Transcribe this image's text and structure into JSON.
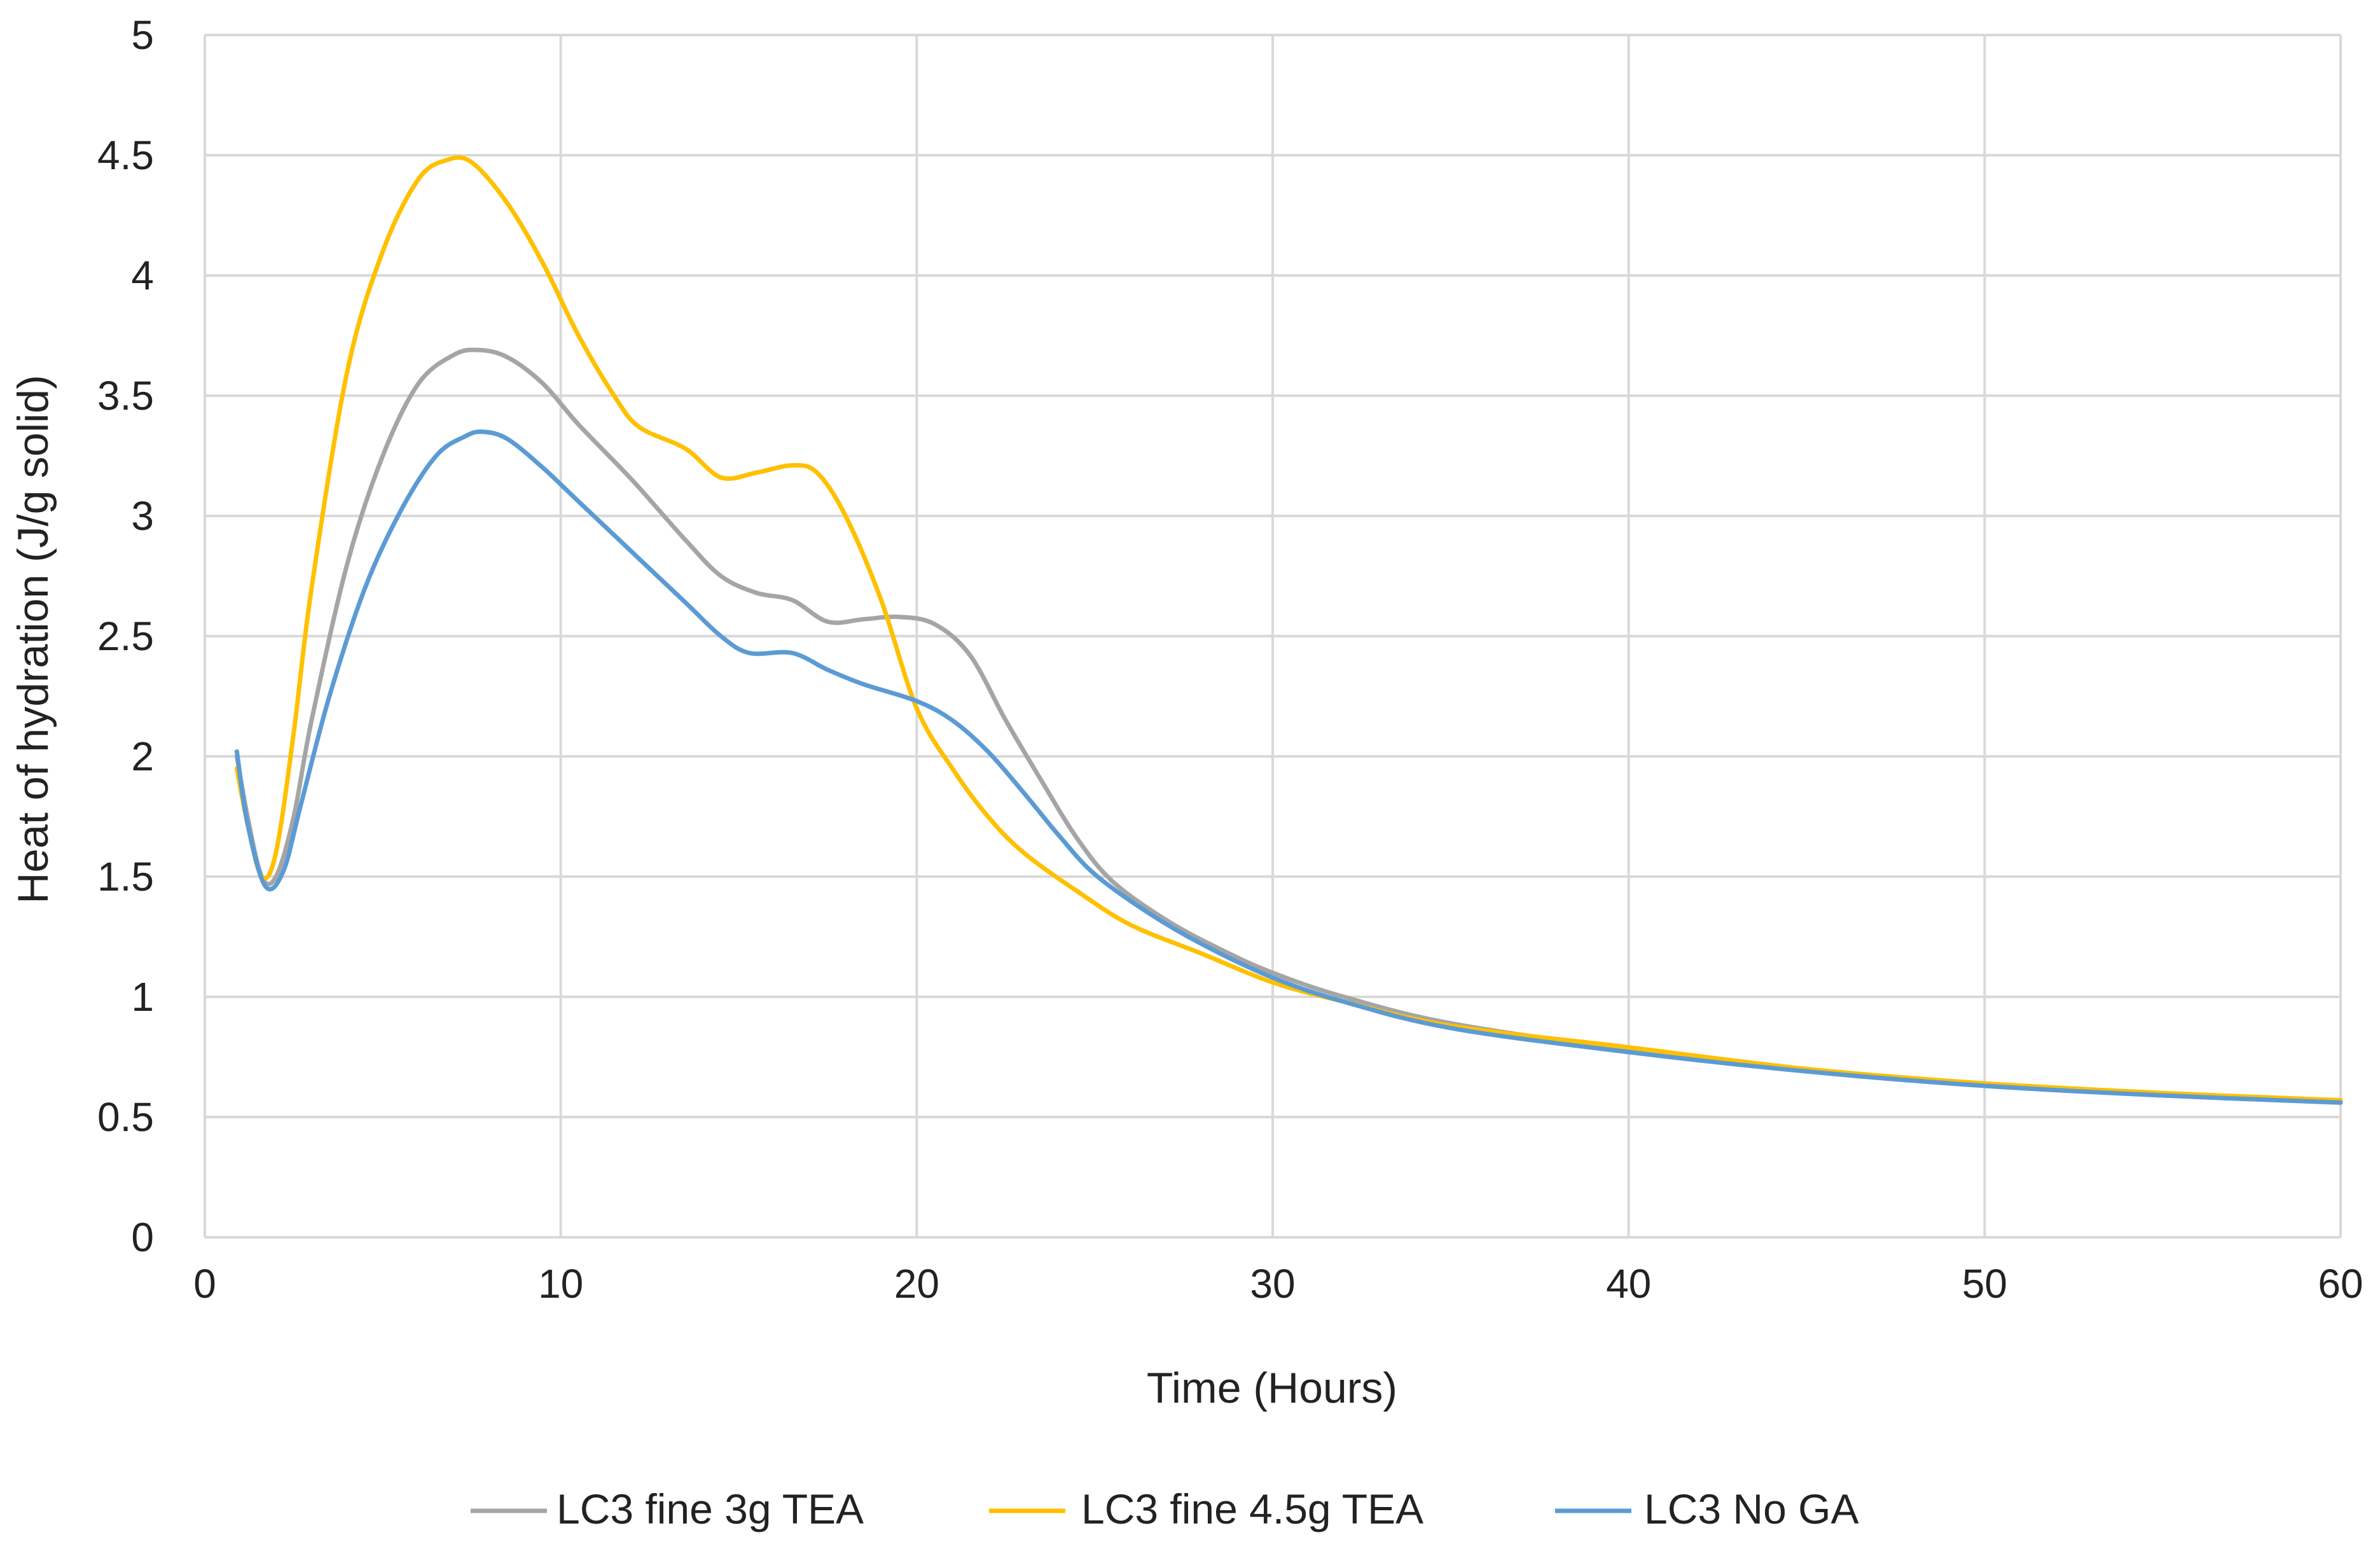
{
  "chart_data": {
    "type": "line",
    "title": "",
    "xlabel": "Time (Hours)",
    "ylabel": "Heat of hydration (J/g solid)",
    "xlim": [
      0,
      60
    ],
    "ylim": [
      0,
      5
    ],
    "xticks": [
      0,
      10,
      20,
      30,
      40,
      50,
      60
    ],
    "xtick_labels": [
      "0",
      "10",
      "20",
      "30",
      "40",
      "50",
      "60"
    ],
    "yticks": [
      0,
      0.5,
      1,
      1.5,
      2,
      2.5,
      3,
      3.5,
      4,
      4.5,
      5
    ],
    "ytick_labels": [
      "0",
      "0.5",
      "1",
      "1.5",
      "2",
      "2.5",
      "3",
      "3.5",
      "4",
      "4.5",
      "5"
    ],
    "grid": true,
    "legend_position": "bottom",
    "series": [
      {
        "name": "LC3 fine 3g TEA",
        "color": "#a5a5a5",
        "points": [
          [
            0.9,
            2.0
          ],
          [
            1.2,
            1.75
          ],
          [
            1.6,
            1.5
          ],
          [
            2.0,
            1.5
          ],
          [
            2.5,
            1.75
          ],
          [
            3,
            2.15
          ],
          [
            4,
            2.8
          ],
          [
            5,
            3.25
          ],
          [
            6,
            3.55
          ],
          [
            7,
            3.67
          ],
          [
            7.7,
            3.69
          ],
          [
            8.5,
            3.66
          ],
          [
            9.5,
            3.55
          ],
          [
            10.5,
            3.38
          ],
          [
            12,
            3.15
          ],
          [
            13.5,
            2.9
          ],
          [
            14.5,
            2.75
          ],
          [
            15.5,
            2.68
          ],
          [
            16.5,
            2.65
          ],
          [
            17.5,
            2.56
          ],
          [
            18.5,
            2.57
          ],
          [
            19.5,
            2.58
          ],
          [
            20.5,
            2.55
          ],
          [
            21.5,
            2.42
          ],
          [
            22.5,
            2.15
          ],
          [
            23.5,
            1.9
          ],
          [
            24.5,
            1.66
          ],
          [
            25.5,
            1.48
          ],
          [
            27,
            1.32
          ],
          [
            28.5,
            1.2
          ],
          [
            30,
            1.1
          ],
          [
            32,
            1.0
          ],
          [
            35,
            0.89
          ],
          [
            40,
            0.78
          ],
          [
            45,
            0.69
          ],
          [
            50,
            0.63
          ],
          [
            55,
            0.59
          ],
          [
            60,
            0.56
          ]
        ]
      },
      {
        "name": "LC3 fine 4.5g TEA",
        "color": "#ffc000",
        "points": [
          [
            0.9,
            1.95
          ],
          [
            1.2,
            1.72
          ],
          [
            1.6,
            1.5
          ],
          [
            2.0,
            1.6
          ],
          [
            2.5,
            2.1
          ],
          [
            3,
            2.7
          ],
          [
            4,
            3.6
          ],
          [
            5,
            4.1
          ],
          [
            6,
            4.4
          ],
          [
            6.8,
            4.48
          ],
          [
            7.5,
            4.47
          ],
          [
            8.5,
            4.3
          ],
          [
            9.5,
            4.05
          ],
          [
            10.5,
            3.75
          ],
          [
            11.5,
            3.5
          ],
          [
            12.2,
            3.37
          ],
          [
            13.5,
            3.28
          ],
          [
            14.5,
            3.16
          ],
          [
            15.5,
            3.18
          ],
          [
            16.5,
            3.21
          ],
          [
            17.2,
            3.18
          ],
          [
            18,
            3.0
          ],
          [
            19,
            2.65
          ],
          [
            20,
            2.2
          ],
          [
            21,
            1.95
          ],
          [
            22,
            1.75
          ],
          [
            23,
            1.6
          ],
          [
            24.5,
            1.44
          ],
          [
            26,
            1.3
          ],
          [
            28,
            1.18
          ],
          [
            30,
            1.06
          ],
          [
            32,
            0.98
          ],
          [
            35,
            0.88
          ],
          [
            40,
            0.79
          ],
          [
            45,
            0.7
          ],
          [
            50,
            0.64
          ],
          [
            55,
            0.6
          ],
          [
            60,
            0.57
          ]
        ]
      },
      {
        "name": "LC3  No GA",
        "color": "#5b9bd5",
        "points": [
          [
            0.9,
            2.02
          ],
          [
            1.2,
            1.72
          ],
          [
            1.7,
            1.46
          ],
          [
            2.2,
            1.52
          ],
          [
            2.7,
            1.8
          ],
          [
            3.5,
            2.25
          ],
          [
            4.5,
            2.7
          ],
          [
            5.5,
            3.02
          ],
          [
            6.5,
            3.25
          ],
          [
            7.3,
            3.33
          ],
          [
            7.8,
            3.35
          ],
          [
            8.5,
            3.32
          ],
          [
            9.5,
            3.2
          ],
          [
            10.5,
            3.06
          ],
          [
            12,
            2.85
          ],
          [
            13.5,
            2.64
          ],
          [
            14.5,
            2.5
          ],
          [
            15.3,
            2.43
          ],
          [
            16.5,
            2.43
          ],
          [
            17.5,
            2.36
          ],
          [
            18.5,
            2.3
          ],
          [
            20,
            2.23
          ],
          [
            21,
            2.15
          ],
          [
            22,
            2.02
          ],
          [
            23,
            1.85
          ],
          [
            24,
            1.67
          ],
          [
            25,
            1.51
          ],
          [
            26.5,
            1.35
          ],
          [
            28,
            1.22
          ],
          [
            30,
            1.08
          ],
          [
            32,
            0.98
          ],
          [
            35,
            0.87
          ],
          [
            40,
            0.77
          ],
          [
            45,
            0.69
          ],
          [
            50,
            0.63
          ],
          [
            55,
            0.59
          ],
          [
            60,
            0.56
          ]
        ]
      }
    ]
  }
}
